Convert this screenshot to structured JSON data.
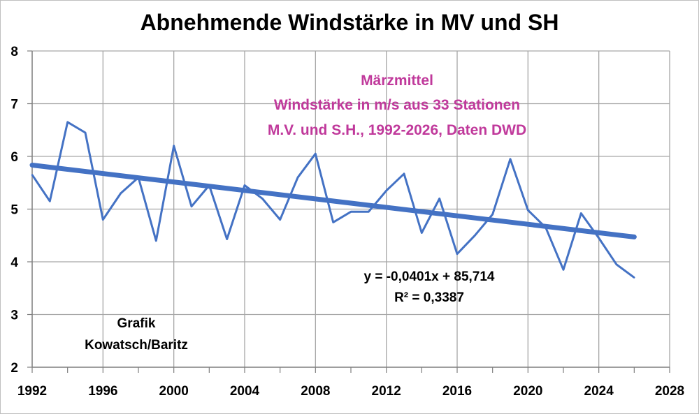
{
  "chart_data": {
    "type": "line",
    "title": "Abnehmende Windstärke in MV und SH",
    "xlabel": "",
    "ylabel": "",
    "xlim": [
      1992,
      2028
    ],
    "ylim": [
      2,
      8
    ],
    "x_ticks": [
      "1992",
      "1996",
      "2000",
      "2004",
      "2008",
      "2012",
      "2016",
      "2020",
      "2024",
      "2028"
    ],
    "y_ticks": [
      "2",
      "3",
      "4",
      "5",
      "6",
      "7",
      "8"
    ],
    "grid": true,
    "series": [
      {
        "color": "#4472c4",
        "x": [
          1992,
          1993,
          1994,
          1995,
          1996,
          1997,
          1998,
          1999,
          2000,
          2001,
          2002,
          2003,
          2004,
          2005,
          2006,
          2007,
          2008,
          2009,
          2010,
          2011,
          2012,
          2013,
          2014,
          2015,
          2016,
          2017,
          2018,
          2019,
          2020,
          2021,
          2022,
          2023,
          2024,
          2025,
          2026
        ],
        "y": [
          5.65,
          5.15,
          6.65,
          6.45,
          4.8,
          5.3,
          5.6,
          4.4,
          6.2,
          5.05,
          5.45,
          4.43,
          5.45,
          5.2,
          4.8,
          5.6,
          6.05,
          4.75,
          4.95,
          4.95,
          5.35,
          5.67,
          4.55,
          5.2,
          4.15,
          4.5,
          4.9,
          5.95,
          4.98,
          4.65,
          3.85,
          4.92,
          4.45,
          3.95,
          3.7
        ]
      }
    ],
    "trendline": {
      "color": "#4472c4",
      "slope": -0.0401,
      "intercept": 85.714,
      "equation": "y = -0,0401x + 85,714",
      "r_squared": "R² = 0,3387"
    },
    "annotation_lines": [
      "Märzmittel",
      "Windstärke in m/s aus 33 Stationen",
      "M.V. und S.H., 1992-2026, Daten DWD"
    ],
    "annotation_color": "#c0399b",
    "credit_lines": [
      "Grafik",
      "Kowatsch/Baritz"
    ]
  }
}
